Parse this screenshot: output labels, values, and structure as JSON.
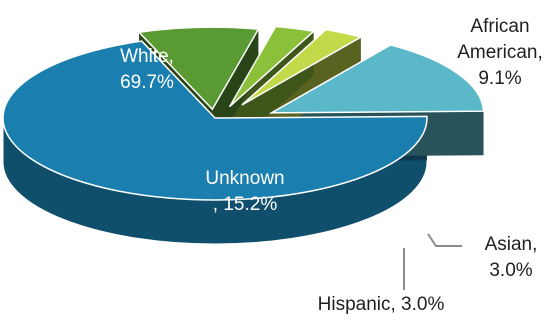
{
  "chart_data": {
    "type": "pie",
    "style": "3d-exploded",
    "slices": [
      {
        "label": "White",
        "value": 69.7,
        "display": [
          "White,",
          "69.7%"
        ],
        "color": "#1a7fae"
      },
      {
        "label": "African American",
        "value": 9.1,
        "display": [
          "African",
          "American,",
          "9.1%"
        ],
        "color": "#5a9a32"
      },
      {
        "label": "Asian",
        "value": 3.0,
        "display": [
          "Asian,",
          "3.0%"
        ],
        "color": "#8cbf3a"
      },
      {
        "label": "Hispanic",
        "value": 3.0,
        "display": [
          "Hispanic, 3.0%"
        ],
        "color": "#c3d94a"
      },
      {
        "label": "Unknown",
        "value": 15.2,
        "display": [
          "Unknown",
          ", 15.2%"
        ],
        "color": "#5ab8c8"
      }
    ]
  }
}
